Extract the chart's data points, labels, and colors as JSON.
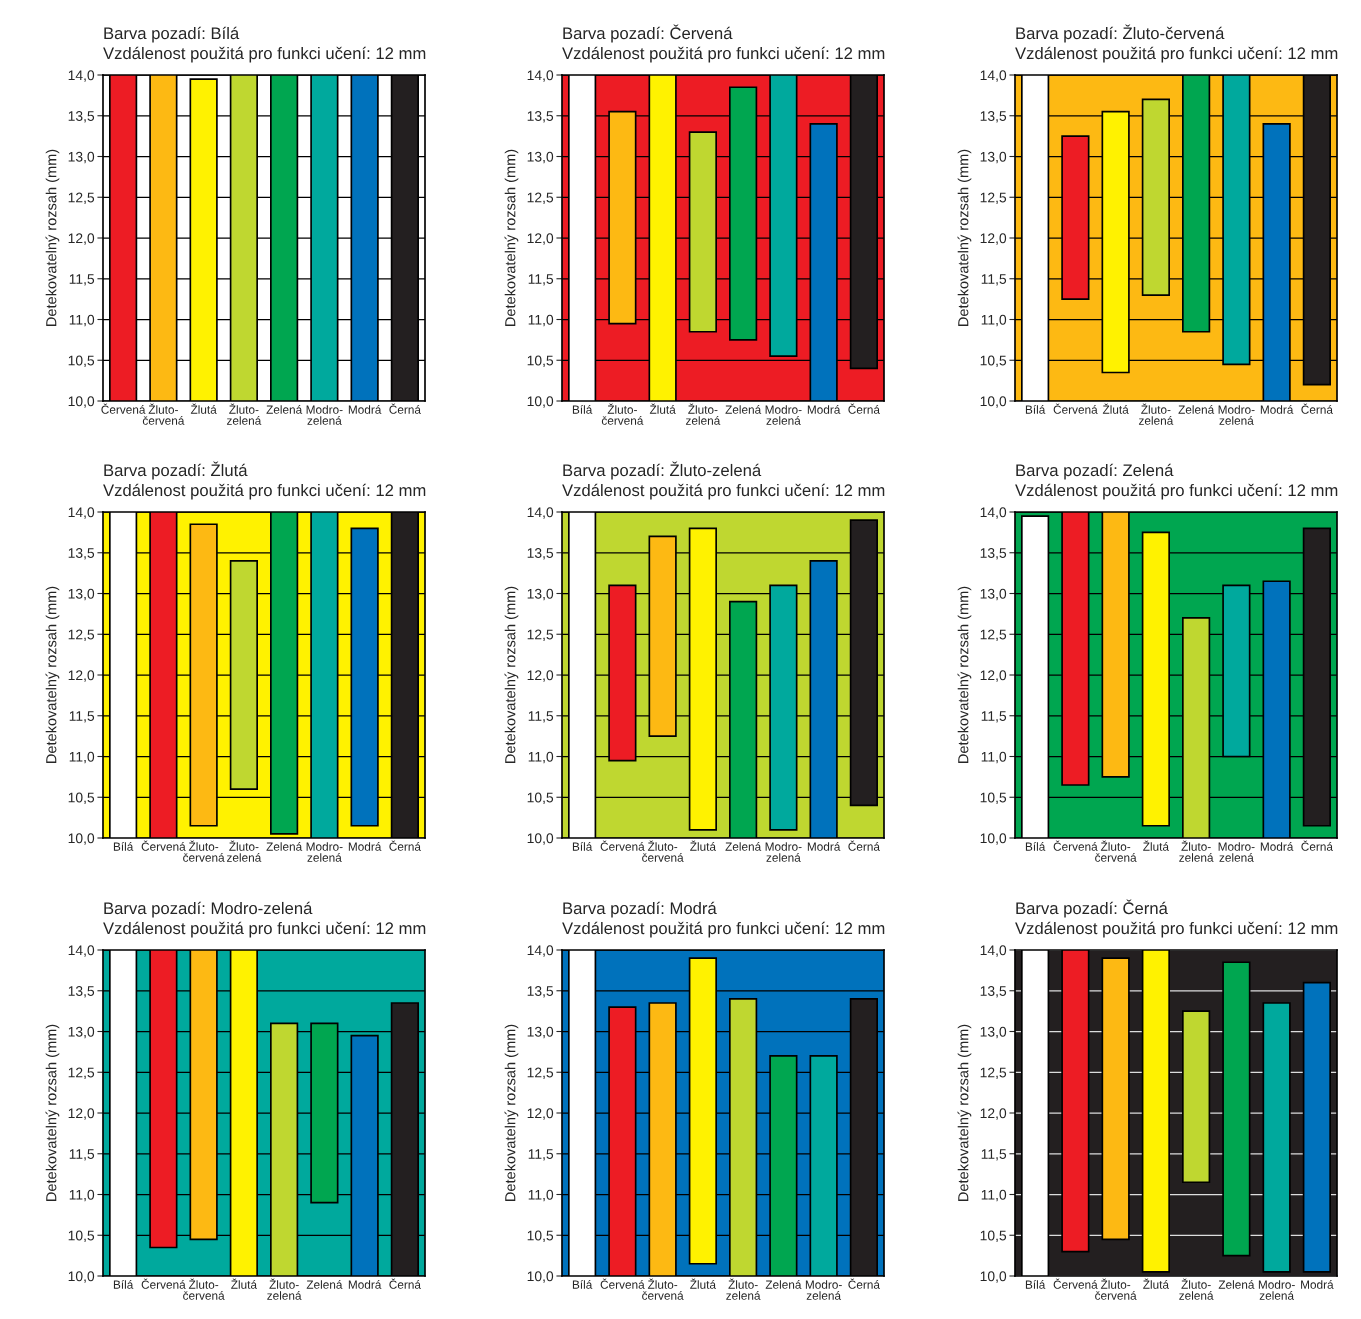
{
  "chart_data": [
    {
      "type": "bar",
      "title": "Barva pozadí: Bílá",
      "subtitle": "Vzdálenost použitá pro funkci učení: 12 mm",
      "ylabel": "Detekovatelný rozsah (mm)",
      "categories": [
        "Červená",
        "Žluto-\nčervená",
        "Žlutá",
        "Žluto-\nzelená",
        "Zelená",
        "Modro-\nzelená",
        "Modrá",
        "Černá"
      ],
      "base": [
        10,
        10,
        10,
        10,
        10,
        10,
        10,
        10
      ],
      "values": [
        4,
        4,
        3.95,
        4,
        4,
        4,
        4,
        4
      ],
      "colors": [
        "#ed1c24",
        "#fdb913",
        "#fff200",
        "#bfd730",
        "#00a650",
        "#00a99d",
        "#0072bc",
        "#231f20"
      ],
      "bands": [
        {
          "axis": "y",
          "from": 10,
          "to": 14,
          "color": "#ffffff"
        }
      ],
      "ylim": [
        10,
        14
      ],
      "yticks": [
        {
          "value": 10,
          "label": "10,0"
        },
        {
          "value": 10.5,
          "label": "10,5"
        },
        {
          "value": 11,
          "label": "11,0"
        },
        {
          "value": 11.5,
          "label": "11,5"
        },
        {
          "value": 12,
          "label": "12,0"
        },
        {
          "value": 12.5,
          "label": "12,5"
        },
        {
          "value": 13,
          "label": "13,0"
        },
        {
          "value": 13.5,
          "label": "13,5"
        },
        {
          "value": 14,
          "label": "14,0"
        }
      ],
      "grid": "y"
    },
    {
      "type": "bar",
      "title": "Barva pozadí: Červená",
      "subtitle": "Vzdálenost použitá pro funkci učení: 12 mm",
      "ylabel": "Detekovatelný rozsah (mm)",
      "categories": [
        "Bílá",
        "Žluto-\nčervená",
        "Žlutá",
        "Žluto-\nzelená",
        "Zelená",
        "Modro-\nzelená",
        "Modrá",
        "Černá"
      ],
      "base": [
        10,
        10.95,
        10,
        10.85,
        10.75,
        10.55,
        10,
        10.4
      ],
      "values": [
        4,
        2.6,
        4,
        2.45,
        3.1,
        3.45,
        3.4,
        3.6
      ],
      "colors": [
        "#ffffff",
        "#fdb913",
        "#fff200",
        "#bfd730",
        "#00a650",
        "#00a99d",
        "#0072bc",
        "#231f20"
      ],
      "bands": [
        {
          "axis": "y",
          "from": 10,
          "to": 14,
          "color": "#ed1c24"
        }
      ],
      "ylim": [
        10,
        14
      ],
      "yticks": [
        {
          "value": 10,
          "label": "10,0"
        },
        {
          "value": 10.5,
          "label": "10,5"
        },
        {
          "value": 11,
          "label": "11,0"
        },
        {
          "value": 11.5,
          "label": "11,5"
        },
        {
          "value": 12,
          "label": "12,0"
        },
        {
          "value": 12.5,
          "label": "12,5"
        },
        {
          "value": 13,
          "label": "13,0"
        },
        {
          "value": 13.5,
          "label": "13,5"
        },
        {
          "value": 14,
          "label": "14,0"
        }
      ],
      "grid": "y"
    },
    {
      "type": "bar",
      "title": "Barva pozadí: Žluto-červená",
      "subtitle": "Vzdálenost použitá pro funkci učení: 12 mm",
      "ylabel": "Detekovatelný rozsah (mm)",
      "categories": [
        "Bílá",
        "Červená",
        "Žlutá",
        "Žluto-\nzelená",
        "Zelená",
        "Modro-\nzelená",
        "Modrá",
        "Černá"
      ],
      "base": [
        10,
        11.25,
        10.35,
        11.3,
        10.85,
        10.45,
        10,
        10.2
      ],
      "values": [
        4,
        2.0,
        3.2,
        2.4,
        3.15,
        3.55,
        3.4,
        3.8
      ],
      "colors": [
        "#ffffff",
        "#ed1c24",
        "#fff200",
        "#bfd730",
        "#00a650",
        "#00a99d",
        "#0072bc",
        "#231f20"
      ],
      "bands": [
        {
          "axis": "y",
          "from": 10,
          "to": 14,
          "color": "#fdb913"
        }
      ],
      "ylim": [
        10,
        14
      ],
      "yticks": [
        {
          "value": 10,
          "label": "10,0"
        },
        {
          "value": 10.5,
          "label": "10,5"
        },
        {
          "value": 11,
          "label": "11,0"
        },
        {
          "value": 11.5,
          "label": "11,5"
        },
        {
          "value": 12,
          "label": "12,0"
        },
        {
          "value": 12.5,
          "label": "12,5"
        },
        {
          "value": 13,
          "label": "13,0"
        },
        {
          "value": 13.5,
          "label": "13,5"
        },
        {
          "value": 14,
          "label": "14,0"
        }
      ],
      "grid": "y"
    },
    {
      "type": "bar",
      "title": "Barva pozadí: Žlutá",
      "subtitle": "Vzdálenost použitá pro funkci učení: 12 mm",
      "ylabel": "Detekovatelný rozsah (mm)",
      "categories": [
        "Bílá",
        "Červená",
        "Žluto-\nčervená",
        "Žluto-\nzelená",
        "Zelená",
        "Modro-\nzelená",
        "Modrá",
        "Černá"
      ],
      "base": [
        10,
        10,
        10.15,
        10.6,
        10.05,
        10,
        10.15,
        10
      ],
      "values": [
        4,
        4,
        3.7,
        2.8,
        3.95,
        4,
        3.65,
        4
      ],
      "colors": [
        "#ffffff",
        "#ed1c24",
        "#fdb913",
        "#bfd730",
        "#00a650",
        "#00a99d",
        "#0072bc",
        "#231f20"
      ],
      "bands": [
        {
          "axis": "y",
          "from": 10,
          "to": 14,
          "color": "#fff200"
        }
      ],
      "ylim": [
        10,
        14
      ],
      "yticks": [
        {
          "value": 10,
          "label": "10,0"
        },
        {
          "value": 10.5,
          "label": "10,5"
        },
        {
          "value": 11,
          "label": "11,0"
        },
        {
          "value": 11.5,
          "label": "11,5"
        },
        {
          "value": 12,
          "label": "12,0"
        },
        {
          "value": 12.5,
          "label": "12,5"
        },
        {
          "value": 13,
          "label": "13,0"
        },
        {
          "value": 13.5,
          "label": "13,5"
        },
        {
          "value": 14,
          "label": "14,0"
        }
      ],
      "grid": "y"
    },
    {
      "type": "bar",
      "title": "Barva pozadí: Žluto-zelená",
      "subtitle": "Vzdálenost použitá pro funkci učení: 12 mm",
      "ylabel": "Detekovatelný rozsah (mm)",
      "categories": [
        "Bílá",
        "Červená",
        "Žluto-\nčervená",
        "Žlutá",
        "Zelená",
        "Modro-\nzelená",
        "Modrá",
        "Černá"
      ],
      "base": [
        10,
        10.95,
        11.25,
        10.1,
        10,
        10.1,
        10,
        10.4
      ],
      "values": [
        4,
        2.15,
        2.45,
        3.7,
        2.9,
        3.0,
        3.4,
        3.5
      ],
      "colors": [
        "#ffffff",
        "#ed1c24",
        "#fdb913",
        "#fff200",
        "#00a650",
        "#00a99d",
        "#0072bc",
        "#231f20"
      ],
      "bands": [
        {
          "axis": "y",
          "from": 10,
          "to": 14,
          "color": "#bfd730"
        }
      ],
      "ylim": [
        10,
        14
      ],
      "yticks": [
        {
          "value": 10,
          "label": "10,0"
        },
        {
          "value": 10.5,
          "label": "10,5"
        },
        {
          "value": 11,
          "label": "11,0"
        },
        {
          "value": 11.5,
          "label": "11,5"
        },
        {
          "value": 12,
          "label": "12,0"
        },
        {
          "value": 12.5,
          "label": "12,5"
        },
        {
          "value": 13,
          "label": "13,0"
        },
        {
          "value": 13.5,
          "label": "13,5"
        },
        {
          "value": 14,
          "label": "14,0"
        }
      ],
      "grid": "y"
    },
    {
      "type": "bar",
      "title": "Barva pozadí: Zelená",
      "subtitle": "Vzdálenost použitá pro funkci učení: 12 mm",
      "ylabel": "Detekovatelný rozsah (mm)",
      "categories": [
        "Bílá",
        "Červená",
        "Žluto-\nčervená",
        "Žlutá",
        "Žluto-\nzelená",
        "Modro-\nzelená",
        "Modrá",
        "Černá"
      ],
      "base": [
        10,
        10.65,
        10.75,
        10.15,
        10,
        11.0,
        10,
        10.15
      ],
      "values": [
        3.95,
        3.35,
        3.25,
        3.6,
        2.7,
        2.1,
        3.15,
        3.65
      ],
      "colors": [
        "#ffffff",
        "#ed1c24",
        "#fdb913",
        "#fff200",
        "#bfd730",
        "#00a99d",
        "#0072bc",
        "#231f20"
      ],
      "bands": [
        {
          "axis": "y",
          "from": 10,
          "to": 14,
          "color": "#00a650"
        }
      ],
      "ylim": [
        10,
        14
      ],
      "yticks": [
        {
          "value": 10,
          "label": "10,0"
        },
        {
          "value": 10.5,
          "label": "10,5"
        },
        {
          "value": 11,
          "label": "11,0"
        },
        {
          "value": 11.5,
          "label": "11,5"
        },
        {
          "value": 12,
          "label": "12,0"
        },
        {
          "value": 12.5,
          "label": "12,5"
        },
        {
          "value": 13,
          "label": "13,0"
        },
        {
          "value": 13.5,
          "label": "13,5"
        },
        {
          "value": 14,
          "label": "14,0"
        }
      ],
      "grid": "y"
    },
    {
      "type": "bar",
      "title": "Barva pozadí: Modro-zelená",
      "subtitle": "Vzdálenost použitá pro funkci učení: 12 mm",
      "ylabel": "Detekovatelný rozsah (mm)",
      "categories": [
        "Bílá",
        "Červená",
        "Žluto-\nčervená",
        "Žlutá",
        "Žluto-\nzelená",
        "Zelená",
        "Modrá",
        "Černá"
      ],
      "base": [
        10,
        10.35,
        10.45,
        10,
        10,
        10.9,
        10,
        10
      ],
      "values": [
        4,
        3.65,
        3.55,
        4,
        3.1,
        2.2,
        2.95,
        3.35
      ],
      "colors": [
        "#ffffff",
        "#ed1c24",
        "#fdb913",
        "#fff200",
        "#bfd730",
        "#00a650",
        "#0072bc",
        "#231f20"
      ],
      "bands": [
        {
          "axis": "y",
          "from": 10,
          "to": 14,
          "color": "#00a99d"
        }
      ],
      "ylim": [
        10,
        14
      ],
      "yticks": [
        {
          "value": 10,
          "label": "10,0"
        },
        {
          "value": 10.5,
          "label": "10,5"
        },
        {
          "value": 11,
          "label": "11,0"
        },
        {
          "value": 11.5,
          "label": "11,5"
        },
        {
          "value": 12,
          "label": "12,0"
        },
        {
          "value": 12.5,
          "label": "12,5"
        },
        {
          "value": 13,
          "label": "13,0"
        },
        {
          "value": 13.5,
          "label": "13,5"
        },
        {
          "value": 14,
          "label": "14,0"
        }
      ],
      "grid": "y"
    },
    {
      "type": "bar",
      "title": "Barva pozadí: Modrá",
      "subtitle": "Vzdálenost použitá pro funkci učení: 12 mm",
      "ylabel": "Detekovatelný rozsah (mm)",
      "categories": [
        "Bílá",
        "Červená",
        "Žluto-\nčervená",
        "Žlutá",
        "Žluto-\nzelená",
        "Zelená",
        "Modro-\nzelená",
        "Černá"
      ],
      "base": [
        10,
        10,
        10,
        10.15,
        10,
        10,
        10,
        10
      ],
      "values": [
        4,
        3.3,
        3.35,
        3.75,
        3.4,
        2.7,
        2.7,
        3.4
      ],
      "colors": [
        "#ffffff",
        "#ed1c24",
        "#fdb913",
        "#fff200",
        "#bfd730",
        "#00a650",
        "#00a99d",
        "#231f20"
      ],
      "bands": [
        {
          "axis": "y",
          "from": 10,
          "to": 14,
          "color": "#0072bc"
        }
      ],
      "ylim": [
        10,
        14
      ],
      "yticks": [
        {
          "value": 10,
          "label": "10,0"
        },
        {
          "value": 10.5,
          "label": "10,5"
        },
        {
          "value": 11,
          "label": "11,0"
        },
        {
          "value": 11.5,
          "label": "11,5"
        },
        {
          "value": 12,
          "label": "12,0"
        },
        {
          "value": 12.5,
          "label": "12,5"
        },
        {
          "value": 13,
          "label": "13,0"
        },
        {
          "value": 13.5,
          "label": "13,5"
        },
        {
          "value": 14,
          "label": "14,0"
        }
      ],
      "grid": "y"
    },
    {
      "type": "bar",
      "title": "Barva pozadí: Černá",
      "subtitle": "Vzdálenost použitá pro funkci učení: 12 mm",
      "ylabel": "Detekovatelný rozsah (mm)",
      "categories": [
        "Bílá",
        "Červená",
        "Žluto-\nčervená",
        "Žlutá",
        "Žluto-\nzelená",
        "Zelená",
        "Modro-\nzelená",
        "Modrá"
      ],
      "base": [
        10,
        10.3,
        10.45,
        10.05,
        11.15,
        10.25,
        10.05,
        10.05
      ],
      "values": [
        4,
        3.7,
        3.45,
        3.95,
        2.1,
        3.6,
        3.3,
        3.55
      ],
      "colors": [
        "#ffffff",
        "#ed1c24",
        "#fdb913",
        "#fff200",
        "#bfd730",
        "#00a650",
        "#00a99d",
        "#0072bc"
      ],
      "bands": [
        {
          "axis": "y",
          "from": 10,
          "to": 14,
          "color": "#231f20"
        }
      ],
      "ylim": [
        10,
        14
      ],
      "yticks": [
        {
          "value": 10,
          "label": "10,0"
        },
        {
          "value": 10.5,
          "label": "10,5"
        },
        {
          "value": 11,
          "label": "11,0"
        },
        {
          "value": 11.5,
          "label": "11,5"
        },
        {
          "value": 12,
          "label": "12,0"
        },
        {
          "value": 12.5,
          "label": "12,5"
        },
        {
          "value": 13,
          "label": "13,0"
        },
        {
          "value": 13.5,
          "label": "13,5"
        },
        {
          "value": 14,
          "label": "14,0"
        }
      ],
      "grid": "y"
    }
  ]
}
